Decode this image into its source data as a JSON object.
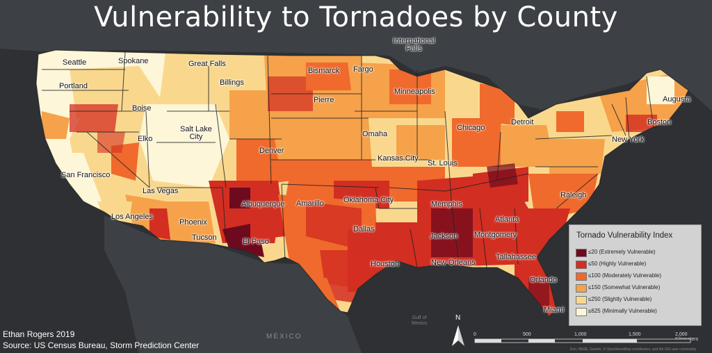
{
  "title": "Vulnerability to Tornadoes by County",
  "colors": {
    "background": "#2e3033",
    "land_dark": "#3d4044",
    "extreme": "#6e0a1e",
    "high": "#d32e22",
    "moderate": "#ef6a2c",
    "somewhat": "#f5a24b",
    "slight": "#f9d88e",
    "minimal": "#fdf6d8"
  },
  "cities": [
    {
      "name": "Seattle"
    },
    {
      "name": "Spokane"
    },
    {
      "name": "Great Falls"
    },
    {
      "name": "Bismarck"
    },
    {
      "name": "Fargo"
    },
    {
      "name": "International\nFalls"
    },
    {
      "name": "Portland"
    },
    {
      "name": "Billings"
    },
    {
      "name": "Minneapolis"
    },
    {
      "name": "Augusta"
    },
    {
      "name": "Boise"
    },
    {
      "name": "Pierre"
    },
    {
      "name": "Salt Lake\nCity"
    },
    {
      "name": "Chicago"
    },
    {
      "name": "Detroit"
    },
    {
      "name": "Boston"
    },
    {
      "name": "Elko"
    },
    {
      "name": "Omaha"
    },
    {
      "name": "New York"
    },
    {
      "name": "Denver"
    },
    {
      "name": "Kansas City"
    },
    {
      "name": "St. Louis"
    },
    {
      "name": "San Francisco"
    },
    {
      "name": "Las Vegas"
    },
    {
      "name": "Raleigh"
    },
    {
      "name": "Albuquerque"
    },
    {
      "name": "Amarillo"
    },
    {
      "name": "Oklahoma City"
    },
    {
      "name": "Memphis"
    },
    {
      "name": "Los Angeles"
    },
    {
      "name": "Phoenix"
    },
    {
      "name": "Atlanta"
    },
    {
      "name": "Dallas"
    },
    {
      "name": "Tucson"
    },
    {
      "name": "Jackson"
    },
    {
      "name": "Montgomery"
    },
    {
      "name": "El Paso"
    },
    {
      "name": "Tallahassee"
    },
    {
      "name": "New Orleans"
    },
    {
      "name": "Houston"
    },
    {
      "name": "Orlando"
    },
    {
      "name": "Miami"
    }
  ],
  "water_labels": [
    "Gulf of\nMexico"
  ],
  "country_label": "MÉXICO",
  "legend": {
    "title": "Tornado Vulnerability Index",
    "items": [
      {
        "label": "≤20 (Extremely Vulnerable)",
        "color": "#6e0a1e"
      },
      {
        "label": "≤50 (Highly Vulnerable)",
        "color": "#d32e22"
      },
      {
        "label": "≤100 (Moderately Vulnerable)",
        "color": "#ef6a2c"
      },
      {
        "label": "≤150 (Somewhat Vulnerable)",
        "color": "#f5a24b"
      },
      {
        "label": "≤250 (Slightly Vulnerable)",
        "color": "#f9d88e"
      },
      {
        "label": "≤625 (Minimally Vulnerable)",
        "color": "#fdf6d8"
      }
    ]
  },
  "credits": {
    "author": "Ethan Rogers 2019",
    "source": "Source: US Census Bureau, Storm Prediction Center"
  },
  "north_label": "N",
  "scale_bar": {
    "ticks": [
      "0",
      "500",
      "1,000",
      "1,500",
      "2,000 Kilometers"
    ]
  },
  "attribution": "Esri, HERE, Garmin, © OpenStreetMap contributors, and the GIS user community"
}
